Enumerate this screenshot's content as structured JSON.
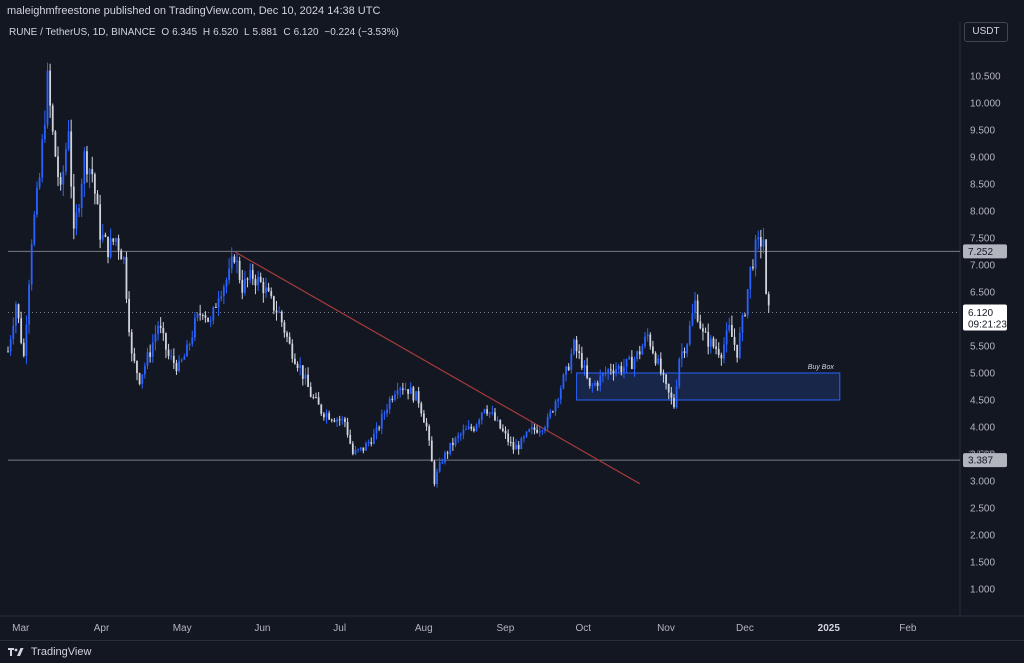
{
  "header": {
    "published_line": "maleighmfreestone published on TradingView.com, Dec 10, 2024 14:38 UTC"
  },
  "symbol": {
    "name": "RUNE / TetherUS, 1D, BINANCE",
    "open_label": "O",
    "open": "6.345",
    "high_label": "H",
    "high": "6.520",
    "low_label": "L",
    "low": "5.881",
    "close_label": "C",
    "close": "6.120",
    "change": "−0.224 (−3.53%)"
  },
  "currency_button": "USDT",
  "price_badges": {
    "resistance": "7.252",
    "support": "3.387",
    "support_tick": "3.500",
    "last_price": "6.120",
    "countdown": "09:21:23"
  },
  "buy_box_label": "Buy Box",
  "footer": {
    "brand": "TradingView"
  },
  "colors": {
    "background": "#131722",
    "candle_up": "#2962ff",
    "candle_down": "#d1d4dc",
    "level_line": "#787b86",
    "trendline": "#a83a3a",
    "buy_box_fill": "#1e3a7a",
    "buy_box_border": "#2962ff"
  },
  "chart_data": {
    "type": "candlestick",
    "title": "RUNE / TetherUS, 1D, BINANCE",
    "ylim": [
      0.5,
      11.5
    ],
    "y_ticks": [
      "10.500",
      "10.000",
      "9.500",
      "9.000",
      "8.500",
      "8.000",
      "7.500",
      "7.000",
      "6.500",
      "6.000",
      "5.500",
      "5.000",
      "4.500",
      "4.000",
      "3.500",
      "3.000",
      "2.500",
      "2.000",
      "1.500",
      "1.000"
    ],
    "x_ticks": [
      "Mar",
      "Apr",
      "May",
      "Jun",
      "Jul",
      "Aug",
      "Sep",
      "Oct",
      "Nov",
      "Dec",
      "2025",
      "Feb"
    ],
    "x_range": [
      "2024-02-25",
      "2025-02-18"
    ],
    "x_tick_dates": [
      "2024-03-01",
      "2024-04-01",
      "2024-05-01",
      "2024-06-01",
      "2024-07-01",
      "2024-08-01",
      "2024-09-01",
      "2024-10-01",
      "2024-11-01",
      "2024-12-01",
      "2025-01-01",
      "2025-02-01"
    ],
    "close_anchors": [
      [
        "2024-02-25",
        5.4
      ],
      [
        "2024-02-28",
        6.3
      ],
      [
        "2024-03-02",
        5.3
      ],
      [
        "2024-03-05",
        7.5
      ],
      [
        "2024-03-08",
        8.6
      ],
      [
        "2024-03-11",
        10.4
      ],
      [
        "2024-03-13",
        9.4
      ],
      [
        "2024-03-16",
        8.3
      ],
      [
        "2024-03-19",
        9.6
      ],
      [
        "2024-03-21",
        7.5
      ],
      [
        "2024-03-25",
        9.0
      ],
      [
        "2024-03-28",
        8.7
      ],
      [
        "2024-03-31",
        7.6
      ],
      [
        "2024-04-03",
        7.3
      ],
      [
        "2024-04-06",
        7.5
      ],
      [
        "2024-04-09",
        7.1
      ],
      [
        "2024-04-12",
        5.3
      ],
      [
        "2024-04-15",
        4.9
      ],
      [
        "2024-04-19",
        5.4
      ],
      [
        "2024-04-22",
        5.9
      ],
      [
        "2024-04-26",
        5.3
      ],
      [
        "2024-04-30",
        5.1
      ],
      [
        "2024-05-03",
        5.4
      ],
      [
        "2024-05-06",
        5.9
      ],
      [
        "2024-05-09",
        6.2
      ],
      [
        "2024-05-12",
        5.9
      ],
      [
        "2024-05-15",
        6.5
      ],
      [
        "2024-05-19",
        6.8
      ],
      [
        "2024-05-21",
        7.2
      ],
      [
        "2024-05-24",
        6.6
      ],
      [
        "2024-05-28",
        6.8
      ],
      [
        "2024-06-01",
        6.6
      ],
      [
        "2024-06-04",
        6.3
      ],
      [
        "2024-06-07",
        6.1
      ],
      [
        "2024-06-11",
        5.5
      ],
      [
        "2024-06-15",
        5.1
      ],
      [
        "2024-06-19",
        4.6
      ],
      [
        "2024-06-23",
        4.3
      ],
      [
        "2024-06-27",
        4.2
      ],
      [
        "2024-07-02",
        4.1
      ],
      [
        "2024-07-05",
        3.5
      ],
      [
        "2024-07-09",
        3.6
      ],
      [
        "2024-07-14",
        3.9
      ],
      [
        "2024-07-18",
        4.4
      ],
      [
        "2024-07-22",
        4.8
      ],
      [
        "2024-07-26",
        4.7
      ],
      [
        "2024-07-30",
        4.5
      ],
      [
        "2024-08-02",
        4.0
      ],
      [
        "2024-08-05",
        3.0
      ],
      [
        "2024-08-08",
        3.4
      ],
      [
        "2024-08-12",
        3.7
      ],
      [
        "2024-08-16",
        3.9
      ],
      [
        "2024-08-20",
        4.0
      ],
      [
        "2024-08-24",
        4.4
      ],
      [
        "2024-08-27",
        4.2
      ],
      [
        "2024-08-31",
        3.9
      ],
      [
        "2024-09-04",
        3.6
      ],
      [
        "2024-09-07",
        3.7
      ],
      [
        "2024-09-10",
        3.9
      ],
      [
        "2024-09-14",
        4.0
      ],
      [
        "2024-09-17",
        4.1
      ],
      [
        "2024-09-20",
        4.5
      ],
      [
        "2024-09-24",
        5.0
      ],
      [
        "2024-09-27",
        5.5
      ],
      [
        "2024-09-30",
        5.2
      ],
      [
        "2024-10-03",
        4.7
      ],
      [
        "2024-10-07",
        4.9
      ],
      [
        "2024-10-11",
        5.1
      ],
      [
        "2024-10-15",
        5.1
      ],
      [
        "2024-10-19",
        5.2
      ],
      [
        "2024-10-22",
        5.4
      ],
      [
        "2024-10-25",
        5.7
      ],
      [
        "2024-10-28",
        5.3
      ],
      [
        "2024-11-01",
        4.7
      ],
      [
        "2024-11-04",
        4.4
      ],
      [
        "2024-11-06",
        5.3
      ],
      [
        "2024-11-09",
        5.6
      ],
      [
        "2024-11-12",
        6.3
      ],
      [
        "2024-11-15",
        5.7
      ],
      [
        "2024-11-19",
        5.5
      ],
      [
        "2024-11-22",
        5.4
      ],
      [
        "2024-11-25",
        5.8
      ],
      [
        "2024-11-28",
        5.4
      ],
      [
        "2024-12-01",
        6.2
      ],
      [
        "2024-12-03",
        6.9
      ],
      [
        "2024-12-05",
        7.3
      ],
      [
        "2024-12-08",
        7.5
      ],
      [
        "2024-12-09",
        6.35
      ],
      [
        "2024-12-10",
        6.12
      ]
    ],
    "levels": [
      7.252,
      3.387
    ],
    "last_price": 6.12,
    "trendline": {
      "from": [
        "2024-05-21",
        7.25
      ],
      "to": [
        "2024-10-22",
        2.95
      ]
    },
    "buy_box": {
      "x0": "2024-09-28",
      "x1": "2025-01-06",
      "y0": 4.5,
      "y1": 5.0,
      "label": "Buy Box"
    }
  }
}
